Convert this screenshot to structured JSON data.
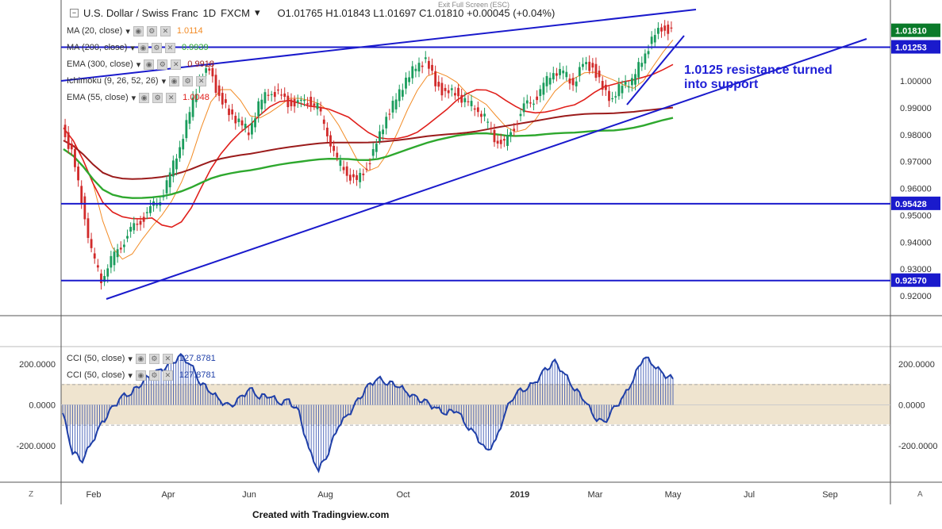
{
  "header": {
    "symbol": "U.S. Dollar / Swiss Franc",
    "interval": "1D",
    "exchange": "FXCM",
    "ohlc": "O1.01765  H1.01843  L1.01697  C1.01810  +0.00045 (+0.04%)",
    "exit_hint": "Exit Full Screen (ESC)"
  },
  "legend": [
    {
      "label": "MA (20, close)",
      "value": "1.0114",
      "color": "#f28b25"
    },
    {
      "label": "MA (200, close)",
      "value": "0.9939",
      "color": "#2ea82e"
    },
    {
      "label": "EMA (300, close)",
      "value": "0.9918",
      "color": "#9b1b1b"
    },
    {
      "label": "Ichimoku (9, 26, 52, 26)",
      "value": "",
      "color": "#777777"
    },
    {
      "label": "EMA (55, close)",
      "value": "1.0048",
      "color": "#e0201c"
    }
  ],
  "cci_legend": [
    {
      "label": "CCI (50, close)",
      "value": "127.8781",
      "color": "#1f3fa8"
    },
    {
      "label": "CCI (50, close)",
      "value": "127.8781",
      "color": "#1f3fa8"
    }
  ],
  "annotation": {
    "line1": "1.0125 resistance turned",
    "line2": "into support"
  },
  "price_labels": [
    {
      "value": "1.01810",
      "color": "#0a7a2a"
    },
    {
      "value": "1.01253",
      "color": "#1a1acc"
    },
    {
      "value": "0.95428",
      "color": "#1a1acc"
    },
    {
      "value": "0.92570",
      "color": "#1a1acc"
    }
  ],
  "credit": "Created with Tradingview.com",
  "colors": {
    "up": "#1a9c5c",
    "down": "#d12a2a",
    "trendline": "#1a1acc",
    "cci_line": "#1f3fa8",
    "cci_band": "#efe4cf"
  },
  "chart_data": {
    "type": "line",
    "title": "U.S. Dollar / Swiss Franc 1D FXCM",
    "x_ticks": [
      "Feb",
      "Apr",
      "Jun",
      "Aug",
      "Oct",
      "2019",
      "Mar",
      "May",
      "Jul",
      "Sep"
    ],
    "y_ticks": [
      "1.00000",
      "0.99000",
      "0.98000",
      "0.97000",
      "0.96000",
      "0.95000",
      "0.94000",
      "0.93000",
      "0.92000"
    ],
    "ylim": [
      0.915,
      1.0285
    ],
    "horizontal_levels": [
      1.01253,
      0.95428,
      0.9257
    ],
    "last_close": 1.0181,
    "price_weekly": [
      0.9825,
      0.973,
      0.956,
      0.936,
      0.9265,
      0.933,
      0.939,
      0.944,
      0.948,
      0.952,
      0.956,
      0.965,
      0.976,
      0.988,
      1.001,
      1.004,
      0.994,
      0.988,
      0.985,
      0.981,
      0.991,
      0.996,
      0.995,
      0.992,
      0.991,
      0.993,
      0.99,
      0.981,
      0.97,
      0.966,
      0.962,
      0.968,
      0.976,
      0.987,
      0.993,
      1.001,
      1.005,
      1.008,
      0.999,
      0.995,
      0.996,
      0.992,
      0.991,
      0.986,
      0.979,
      0.976,
      0.983,
      0.99,
      0.993,
      0.998,
      1.004,
      1.003,
      0.999,
      1.006,
      1.005,
      0.997,
      0.993,
      0.999,
      1.0,
      1.008,
      1.015,
      1.02,
      1.0181
    ],
    "cci_ticks": [
      "200.0000",
      "0.0000",
      "-200.0000"
    ],
    "cci_ylim": [
      -370,
      260
    ],
    "cci_band": [
      -100,
      100
    ],
    "cci_weekly": [
      -40,
      -230,
      -270,
      -180,
      -90,
      -20,
      40,
      60,
      110,
      150,
      170,
      200,
      240,
      200,
      110,
      70,
      20,
      -10,
      30,
      80,
      40,
      50,
      10,
      20,
      -40,
      -220,
      -320,
      -230,
      -100,
      -50,
      20,
      90,
      130,
      110,
      100,
      60,
      30,
      10,
      -20,
      -40,
      -20,
      -100,
      -150,
      -230,
      -180,
      -30,
      60,
      80,
      110,
      170,
      210,
      150,
      80,
      30,
      -60,
      -90,
      -20,
      40,
      130,
      240,
      200,
      150,
      128
    ]
  }
}
